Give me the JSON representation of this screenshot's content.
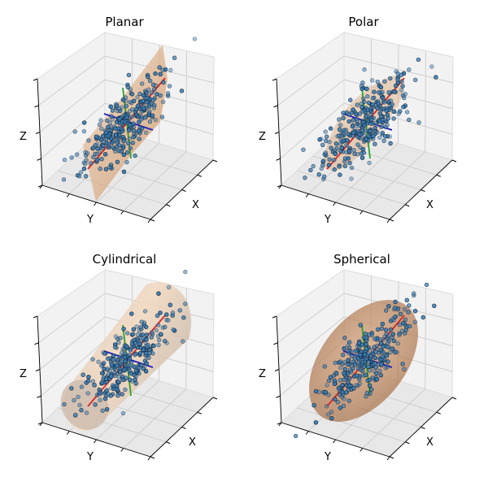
{
  "figure_title": "",
  "colors": {
    "points_fill": "#3b7fb8",
    "points_edge": "#0d1a26",
    "axis_red": "#d62728",
    "axis_blue": "#1f1fbf",
    "axis_green": "#2ca02c",
    "surface": "#d9a67a",
    "pane": "#f2f2f2",
    "pane_dark": "#e8e8e8",
    "grid": "#cfcfcf"
  },
  "chart_data": [
    {
      "type": "scatter3d",
      "title": "Planar",
      "xlabel": "X",
      "ylabel": "Y",
      "zlabel": "Z",
      "xlim": [
        -3,
        3
      ],
      "ylim": [
        -3,
        3
      ],
      "zlim": [
        -3,
        3
      ],
      "surface": "planar",
      "point_count": 300,
      "principal_axes": [
        "red",
        "blue",
        "green"
      ]
    },
    {
      "type": "scatter3d",
      "title": "Polar",
      "xlabel": "X",
      "ylabel": "Y",
      "zlabel": "Z",
      "xlim": [
        -3,
        3
      ],
      "ylim": [
        -3,
        3
      ],
      "zlim": [
        -3,
        3
      ],
      "surface": "polar",
      "point_count": 300,
      "principal_axes": [
        "red",
        "blue",
        "green"
      ]
    },
    {
      "type": "scatter3d",
      "title": "Cylindrical",
      "xlabel": "X",
      "ylabel": "Y",
      "zlabel": "Z",
      "xlim": [
        -3,
        3
      ],
      "ylim": [
        -3,
        3
      ],
      "zlim": [
        -3,
        3
      ],
      "surface": "cylindrical",
      "point_count": 300,
      "principal_axes": [
        "red",
        "blue",
        "green"
      ]
    },
    {
      "type": "scatter3d",
      "title": "Spherical",
      "xlabel": "X",
      "ylabel": "Y",
      "zlabel": "Z",
      "xlim": [
        -3,
        3
      ],
      "ylim": [
        -3,
        3
      ],
      "zlim": [
        -3,
        3
      ],
      "surface": "spherical",
      "point_count": 300,
      "principal_axes": [
        "red",
        "blue",
        "green"
      ]
    }
  ]
}
